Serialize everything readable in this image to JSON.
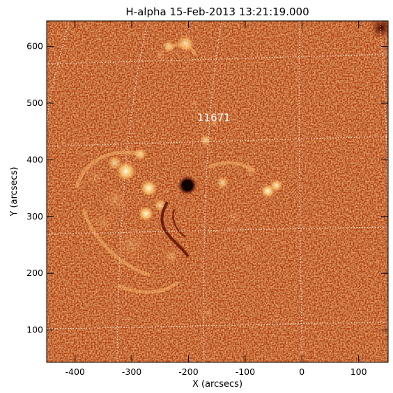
{
  "figure": {
    "title": "H-alpha 15-Feb-2013 13:21:19.000",
    "xlabel": "X (arcsecs)",
    "ylabel": "Y (arcsecs)",
    "xlim": [
      -450,
      152
    ],
    "ylim": [
      43,
      645
    ],
    "xticks": [
      -400,
      -300,
      -200,
      -100,
      0,
      100
    ],
    "yticks": [
      100,
      200,
      300,
      400,
      500,
      600
    ],
    "annotation": "11671",
    "colors": {
      "background": "#c94a14",
      "dark": "#7a1c06",
      "bright": "#ffe8a0",
      "grid": "#ffffff",
      "axes": "#000000"
    },
    "sunspot": {
      "x": -202,
      "y": 355
    },
    "dark_region": {
      "x": 140,
      "y": 633
    }
  }
}
